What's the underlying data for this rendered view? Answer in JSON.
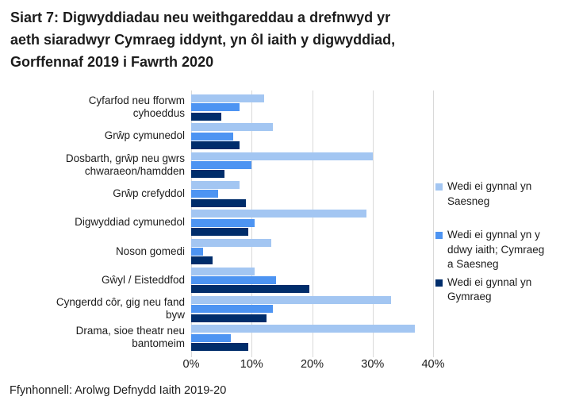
{
  "header": {
    "title": "Siart 7: Digwyddiadau neu weithgareddau a drefnwyd yr aeth siaradwyr Cymraeg iddynt, yn ôl iaith y digwyddiad, Gorffennaf 2019 i Fawrth 2020",
    "lines": [
      "Siart 7: Digwyddiadau neu weithgareddau a drefnwyd yr",
      "aeth siaradwyr Cymraeg iddynt, yn ôl iaith y digwyddiad,",
      "Gorffennaf 2019 i Fawrth 2020"
    ]
  },
  "source": "Ffynhonnell: Arolwg Defnydd Iaith 2019-20",
  "colors": {
    "saesneg": "#A3C6F2",
    "dwyieithog": "#4D94F2",
    "cymraeg": "#002D6B",
    "gridline": "#D9D9D9",
    "text": "#1C1C1C"
  },
  "chart_data": {
    "type": "bar",
    "orientation": "horizontal",
    "title": "Siart 7: Digwyddiadau neu weithgareddau a drefnwyd yr aeth siaradwyr Cymraeg iddynt, yn ôl iaith y digwyddiad, Gorffennaf 2019 i Fawrth 2020",
    "xlabel": "",
    "ylabel": "",
    "xlim": [
      0,
      42
    ],
    "grid": "vertical",
    "legend_position": "right",
    "categories": [
      "Cyfarfod neu fforwm cyhoeddus",
      "Grŵp cymunedol",
      "Dosbarth, grŵp neu gwrs chwaraeon/hamdden",
      "Grŵp crefyddol",
      "Digwyddiad cymunedol",
      "Noson gomedi",
      "Gŵyl / Eisteddfod",
      "Cyngerdd côr, gig neu fand byw",
      "Drama, sioe theatr neu bantomeim"
    ],
    "category_label_lines": [
      [
        "Cyfarfod neu fforwm",
        "cyhoeddus"
      ],
      [
        "Grŵp cymunedol"
      ],
      [
        "Dosbarth, grŵp neu gwrs",
        "chwaraeon/hamdden"
      ],
      [
        "Grŵp crefyddol"
      ],
      [
        "Digwyddiad cymunedol"
      ],
      [
        "Noson gomedi"
      ],
      [
        "Gŵyl / Eisteddfod"
      ],
      [
        "Cyngerdd côr, gig neu fand",
        "byw"
      ],
      [
        "Drama, sioe theatr neu",
        "bantomeim"
      ]
    ],
    "series": [
      {
        "name": "Wedi ei gynnal yn Saesneg",
        "color_key": "saesneg",
        "values": [
          12,
          13.5,
          30,
          8,
          29,
          13.3,
          10.5,
          33,
          37
        ]
      },
      {
        "name": "Wedi ei gynnal yn y ddwy iaith; Cymraeg a Saesneg",
        "color_key": "dwyieithog",
        "values": [
          8,
          7,
          10,
          4.5,
          10.5,
          2,
          14,
          13.5,
          6.5
        ]
      },
      {
        "name": "Wedi ei gynnal yn Gymraeg",
        "color_key": "cymraeg",
        "values": [
          5,
          8,
          5.5,
          9,
          9.5,
          3.5,
          19.5,
          12.5,
          9.5
        ]
      }
    ],
    "x_ticks": [
      {
        "value": 0,
        "label": "0%"
      },
      {
        "value": 10,
        "label": "10%"
      },
      {
        "value": 20,
        "label": "20%"
      },
      {
        "value": 30,
        "label": "30%"
      },
      {
        "value": 40,
        "label": "40%"
      }
    ]
  },
  "legend": {
    "items": [
      {
        "label": "Wedi ei gynnal yn Saesneg",
        "lines": [
          "Wedi ei gynnal yn",
          "Saesneg"
        ],
        "color_key": "saesneg"
      },
      {
        "label": "Wedi ei gynnal yn y ddwy iaith; Cymraeg a Saesneg",
        "lines": [
          "Wedi ei gynnal yn y",
          "ddwy iaith; Cymraeg",
          "a Saesneg"
        ],
        "color_key": "dwyieithog"
      },
      {
        "label": "Wedi ei gynnal yn Gymraeg",
        "lines": [
          "Wedi ei gynnal yn",
          "Gymraeg"
        ],
        "color_key": "cymraeg"
      }
    ]
  }
}
